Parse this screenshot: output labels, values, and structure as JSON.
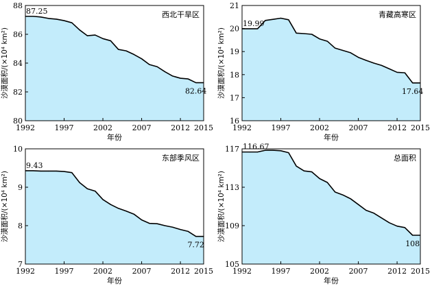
{
  "colors": {
    "fill": "#c3ecfb",
    "line": "#000000",
    "axis": "#000000"
  },
  "chart_data": [
    {
      "type": "area",
      "title": "西北干旱区",
      "xlabel": "年份",
      "ylabel": "沙漠面积/(×10⁴ km²)",
      "xlim": [
        1992,
        2015
      ],
      "ylim": [
        80,
        88
      ],
      "xticks": [
        "1992",
        "1997",
        "2002",
        "2007",
        "2012",
        "2015"
      ],
      "yticks": [
        "80",
        "82",
        "84",
        "86",
        "88"
      ],
      "x": [
        1992,
        1993,
        1994,
        1995,
        1996,
        1997,
        1998,
        1999,
        2000,
        2001,
        2002,
        2003,
        2004,
        2005,
        2006,
        2007,
        2008,
        2009,
        2010,
        2011,
        2012,
        2013,
        2014,
        2015
      ],
      "values": [
        87.25,
        87.25,
        87.2,
        87.1,
        87.05,
        86.95,
        86.8,
        86.3,
        85.9,
        85.95,
        85.7,
        85.55,
        84.95,
        84.85,
        84.6,
        84.3,
        83.9,
        83.75,
        83.4,
        83.1,
        82.95,
        82.9,
        82.64,
        82.64
      ],
      "annotations": [
        {
          "x": 1992,
          "y": 87.25,
          "text": "87.25"
        },
        {
          "x": 2014,
          "y": 82.64,
          "text": "82.64"
        }
      ]
    },
    {
      "type": "area",
      "title": "青藏高寒区",
      "xlabel": "年份",
      "ylabel": "沙漠面积/(×10⁴ km²)",
      "xlim": [
        1992,
        2015
      ],
      "ylim": [
        16,
        21
      ],
      "xticks": [
        "1992",
        "1997",
        "2002",
        "2007",
        "2012",
        "2015"
      ],
      "yticks": [
        "16",
        "17",
        "18",
        "19",
        "20",
        "21"
      ],
      "x": [
        1992,
        1993,
        1994,
        1995,
        1996,
        1997,
        1998,
        1999,
        2000,
        2001,
        2002,
        2003,
        2004,
        2005,
        2006,
        2007,
        2008,
        2009,
        2010,
        2011,
        2012,
        2013,
        2014,
        2015
      ],
      "values": [
        19.99,
        19.99,
        19.99,
        20.35,
        20.4,
        20.45,
        20.38,
        19.8,
        19.78,
        19.75,
        19.55,
        19.45,
        19.15,
        19.05,
        18.95,
        18.75,
        18.62,
        18.5,
        18.4,
        18.25,
        18.1,
        18.08,
        17.64,
        17.64
      ],
      "annotations": [
        {
          "x": 1992,
          "y": 19.99,
          "text": "19.99"
        },
        {
          "x": 2014,
          "y": 17.64,
          "text": "17.64"
        }
      ]
    },
    {
      "type": "area",
      "title": "东部季风区",
      "xlabel": "年份",
      "ylabel": "沙漠面积/(×10⁴ km²)",
      "xlim": [
        1992,
        2015
      ],
      "ylim": [
        7,
        10
      ],
      "xticks": [
        "1992",
        "1997",
        "2002",
        "2007",
        "2012",
        "2015"
      ],
      "yticks": [
        "7",
        "8",
        "9",
        "10"
      ],
      "x": [
        1992,
        1993,
        1994,
        1995,
        1996,
        1997,
        1998,
        1999,
        2000,
        2001,
        2002,
        2003,
        2004,
        2005,
        2006,
        2007,
        2008,
        2009,
        2010,
        2011,
        2012,
        2013,
        2014,
        2015
      ],
      "values": [
        9.43,
        9.43,
        9.42,
        9.42,
        9.42,
        9.41,
        9.38,
        9.12,
        8.96,
        8.9,
        8.68,
        8.55,
        8.45,
        8.38,
        8.3,
        8.15,
        8.06,
        8.05,
        8.0,
        7.96,
        7.9,
        7.85,
        7.72,
        7.72
      ],
      "annotations": [
        {
          "x": 1992,
          "y": 9.43,
          "text": "9.43"
        },
        {
          "x": 2014,
          "y": 7.72,
          "text": "7.72"
        }
      ]
    },
    {
      "type": "area",
      "title": "总面积",
      "xlabel": "年份",
      "ylabel": "沙漠面积/(×10⁴ km²)",
      "xlim": [
        1992,
        2015
      ],
      "ylim": [
        105,
        117
      ],
      "xticks": [
        "1992",
        "1997",
        "2002",
        "2007",
        "2012",
        "2015"
      ],
      "yticks": [
        "105",
        "109",
        "113",
        "117"
      ],
      "x": [
        1992,
        1993,
        1994,
        1995,
        1996,
        1997,
        1998,
        1999,
        2000,
        2001,
        2002,
        2003,
        2004,
        2005,
        2006,
        2007,
        2008,
        2009,
        2010,
        2011,
        2012,
        2013,
        2014,
        2015
      ],
      "values": [
        116.67,
        116.67,
        116.67,
        116.85,
        116.85,
        116.8,
        116.6,
        115.2,
        114.7,
        114.6,
        113.9,
        113.5,
        112.5,
        112.2,
        111.8,
        111.2,
        110.6,
        110.3,
        109.8,
        109.3,
        108.95,
        108.8,
        108.0,
        108.0
      ],
      "annotations": [
        {
          "x": 1992,
          "y": 116.67,
          "text": "116.67"
        },
        {
          "x": 2014,
          "y": 108.0,
          "text": "108"
        }
      ]
    }
  ]
}
